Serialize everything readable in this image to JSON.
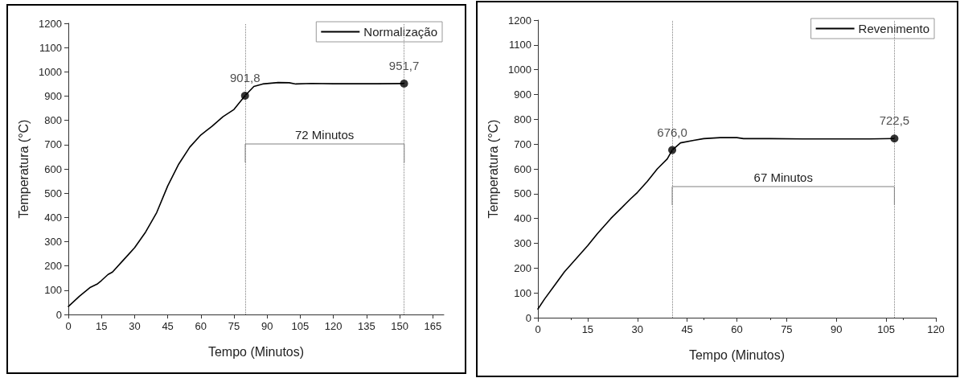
{
  "chart_data": [
    {
      "type": "line",
      "xlabel": "Tempo (Minutos)",
      "ylabel": "Temperatura (°C)",
      "xlim": [
        0,
        170
      ],
      "xticks": [
        0,
        15,
        30,
        45,
        60,
        75,
        90,
        105,
        120,
        135,
        150,
        165
      ],
      "ylim": [
        0,
        1200
      ],
      "yticks": [
        0,
        100,
        200,
        300,
        400,
        500,
        600,
        700,
        800,
        900,
        1000,
        1100,
        1200
      ],
      "grid": false,
      "legend": "top right",
      "series": [
        {
          "name": "Normalização",
          "type": "line",
          "color": "#000000",
          "marker": "none",
          "x": [
            0,
            5,
            10,
            13,
            15,
            18,
            20,
            24,
            27,
            30,
            35,
            40,
            45,
            50,
            55,
            60,
            65,
            70,
            75,
            80,
            84,
            88,
            95,
            100,
            103,
            110,
            120,
            130,
            140,
            152
          ],
          "values": [
            33,
            75,
            112,
            125,
            140,
            165,
            175,
            215,
            245,
            275,
            340,
            420,
            530,
            620,
            690,
            740,
            775,
            815,
            845,
            901.8,
            940,
            950,
            956,
            955,
            950,
            952,
            951,
            951,
            951,
            951.7
          ]
        },
        {
          "type": "scatter",
          "color": "#000000",
          "marker": "circle",
          "x": [
            80,
            152
          ],
          "values": [
            901.8,
            951.7
          ],
          "value_labels": [
            "901,8",
            "951,7"
          ]
        }
      ],
      "ref_lines": [
        {
          "axis": "x",
          "value": 80,
          "color": "#808080",
          "line_style": "dotted"
        },
        {
          "axis": "x",
          "value": 152,
          "color": "#808080",
          "line_style": "dotted"
        }
      ],
      "annotations": [
        "72 Minutos"
      ]
    },
    {
      "type": "line",
      "xlabel": "Tempo (Minutos)",
      "ylabel": "Temperatura (°C)",
      "xlim": [
        0,
        120
      ],
      "xticks": [
        0,
        15,
        30,
        45,
        60,
        75,
        90,
        105,
        120
      ],
      "ylim": [
        0,
        1200
      ],
      "yticks": [
        0,
        100,
        200,
        300,
        400,
        500,
        600,
        700,
        800,
        900,
        1000,
        1100,
        1200
      ],
      "grid": false,
      "legend": "top right",
      "series": [
        {
          "name": "Revenimento",
          "type": "line",
          "color": "#000000",
          "marker": "none",
          "x": [
            0,
            2,
            5,
            8,
            10,
            15,
            18,
            22,
            25,
            28,
            30,
            33,
            36,
            39,
            40.5,
            43,
            47,
            50,
            55,
            60,
            62,
            70,
            80,
            90,
            100,
            107.5
          ],
          "values": [
            35,
            75,
            130,
            185,
            215,
            290,
            340,
            400,
            440,
            480,
            505,
            550,
            600,
            640,
            676,
            705,
            715,
            722,
            726,
            726,
            722,
            722,
            721,
            721,
            721,
            722.5
          ]
        },
        {
          "type": "scatter",
          "color": "#000000",
          "marker": "circle",
          "x": [
            40.5,
            107.5
          ],
          "values": [
            676.0,
            722.5
          ],
          "value_labels": [
            "676,0",
            "722,5"
          ]
        }
      ],
      "ref_lines": [
        {
          "axis": "x",
          "value": 40.5,
          "color": "#808080",
          "line_style": "dotted"
        },
        {
          "axis": "x",
          "value": 107.5,
          "color": "#808080",
          "line_style": "dotted"
        }
      ],
      "annotations": [
        "67 Minutos"
      ]
    }
  ]
}
